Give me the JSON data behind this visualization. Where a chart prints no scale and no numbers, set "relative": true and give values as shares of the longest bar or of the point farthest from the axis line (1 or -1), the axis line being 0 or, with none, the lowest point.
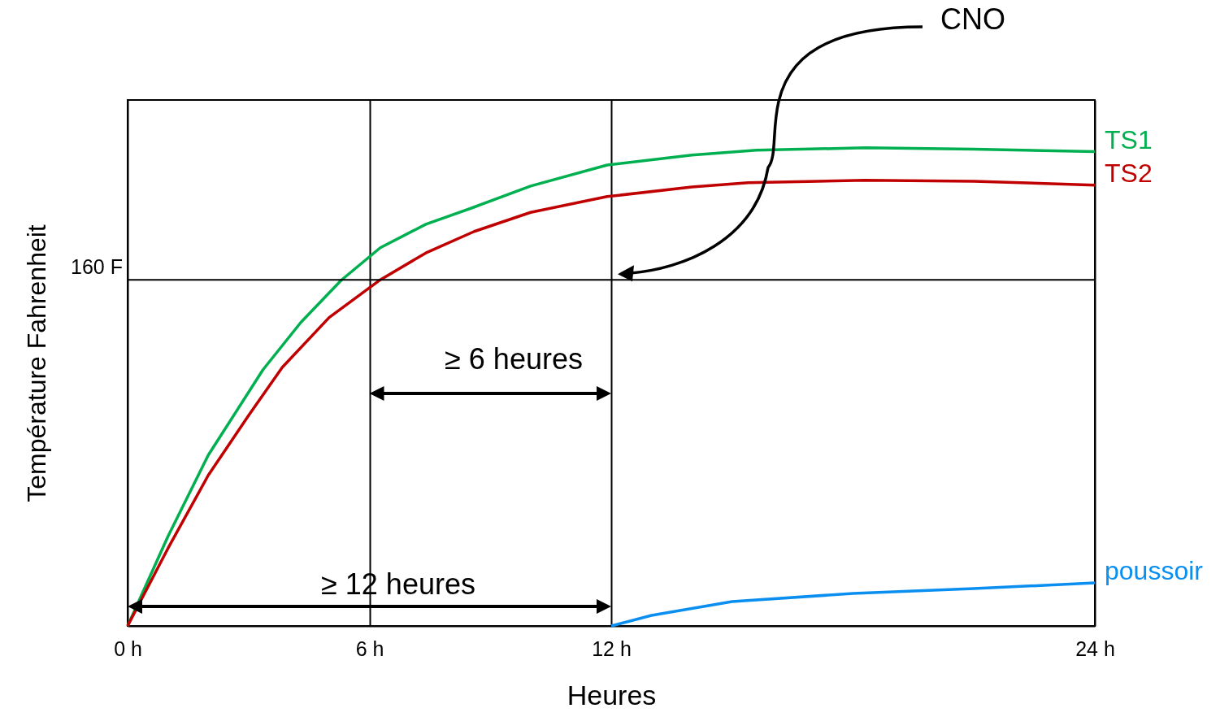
{
  "chart_data": {
    "type": "line",
    "xlabel": "Heures",
    "ylabel": "Température Fahrenheit",
    "relative": true,
    "xlim": [
      0,
      24
    ],
    "xticks": [
      {
        "value": 0,
        "label": "0 h"
      },
      {
        "value": 6,
        "label": "6 h"
      },
      {
        "value": 12,
        "label": "12 h"
      },
      {
        "value": 24,
        "label": "24 h"
      }
    ],
    "grid": "x",
    "legend": false,
    "marker": "none",
    "line_style": "solid",
    "ref_lines": [
      {
        "axis": "y",
        "value": 0.724,
        "label": "160 F"
      }
    ],
    "annotations": [
      "CNO",
      "≥ 6 heures",
      "≥ 12 heures"
    ],
    "series": [
      {
        "name": "TS1",
        "color": "#00b050",
        "x": [
          0,
          1,
          2,
          3.36,
          4.3,
          5.3,
          6.27,
          7.4,
          8.6,
          10,
          11.9,
          14,
          15.6,
          18.3,
          21,
          24
        ],
        "values": [
          0,
          0.187,
          0.357,
          0.536,
          0.635,
          0.723,
          0.791,
          0.84,
          0.876,
          0.92,
          0.964,
          0.985,
          0.995,
          1,
          0.997,
          0.992
        ]
      },
      {
        "name": "TS2",
        "color": "#c00000",
        "x": [
          0,
          1,
          2,
          3,
          3.84,
          5,
          6.27,
          7.4,
          8.6,
          10,
          11.9,
          14,
          15.4,
          18.3,
          21,
          24
        ],
        "values": [
          0,
          0.162,
          0.315,
          0.44,
          0.541,
          0.645,
          0.724,
          0.78,
          0.825,
          0.865,
          0.898,
          0.918,
          0.927,
          0.932,
          0.93,
          0.922
        ]
      },
      {
        "name": "poussoir",
        "color": "#0a8ff0",
        "x": [
          12,
          13,
          15,
          18,
          21,
          24
        ],
        "values": [
          0,
          0.022,
          0.051,
          0.068,
          0.078,
          0.09
        ]
      }
    ]
  }
}
